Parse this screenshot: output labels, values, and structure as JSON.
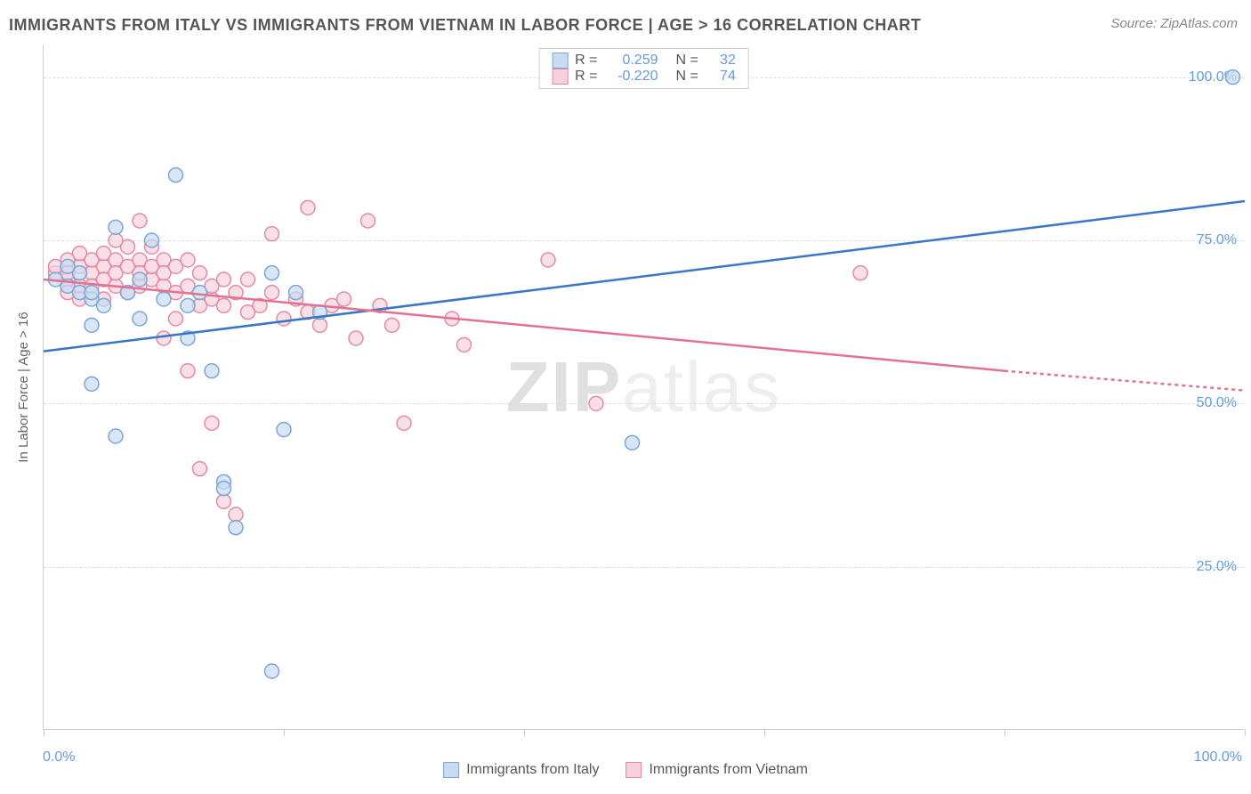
{
  "title": "IMMIGRANTS FROM ITALY VS IMMIGRANTS FROM VIETNAM IN LABOR FORCE | AGE > 16 CORRELATION CHART",
  "source": "Source: ZipAtlas.com",
  "y_axis_label": "In Labor Force | Age > 16",
  "watermark_a": "ZIP",
  "watermark_b": "atlas",
  "chart": {
    "type": "scatter-correlation",
    "xlim": [
      0,
      100
    ],
    "ylim": [
      0,
      105
    ],
    "x_ticks": [
      0,
      20,
      40,
      60,
      80,
      100
    ],
    "x_tick_labels": {
      "0": "0.0%",
      "100": "100.0%"
    },
    "y_ticks": [
      25,
      50,
      75,
      100
    ],
    "y_tick_labels": {
      "25": "25.0%",
      "50": "50.0%",
      "75": "75.0%",
      "100": "100.0%"
    },
    "background_color": "#ffffff",
    "grid_color": "#dddddd",
    "axis_color": "#cccccc",
    "tick_label_color": "#6699dd",
    "marker_radius": 8,
    "marker_stroke_width": 1.5,
    "line_width": 2.5,
    "series": [
      {
        "id": "italy",
        "label": "Immigrants from Italy",
        "fill": "#c7dbf2",
        "stroke": "#7aa6d8",
        "line_color": "#3a76c8",
        "R_label": "R =",
        "R": "0.259",
        "N_label": "N =",
        "N": "32",
        "trend": {
          "x1": 0,
          "y1": 58,
          "x2": 100,
          "y2": 81
        },
        "points": [
          [
            2,
            68
          ],
          [
            3,
            67
          ],
          [
            3,
            70
          ],
          [
            4,
            66
          ],
          [
            5,
            65
          ],
          [
            4,
            62
          ],
          [
            6,
            77
          ],
          [
            7,
            67
          ],
          [
            8,
            69
          ],
          [
            8,
            63
          ],
          [
            9,
            75
          ],
          [
            10,
            66
          ],
          [
            11,
            85
          ],
          [
            12,
            65
          ],
          [
            13,
            67
          ],
          [
            14,
            55
          ],
          [
            15,
            38
          ],
          [
            15,
            37
          ],
          [
            16,
            31
          ],
          [
            19,
            70
          ],
          [
            20,
            46
          ],
          [
            21,
            67
          ],
          [
            23,
            64
          ],
          [
            19,
            9
          ],
          [
            6,
            45
          ],
          [
            4,
            53
          ],
          [
            2,
            71
          ],
          [
            1,
            69
          ],
          [
            49,
            44
          ],
          [
            12,
            60
          ],
          [
            99,
            100
          ],
          [
            4,
            67
          ]
        ]
      },
      {
        "id": "vietnam",
        "label": "Immigrants from Vietnam",
        "fill": "#f6d1dc",
        "stroke": "#e48aa6",
        "line_color": "#e4718f",
        "R_label": "R =",
        "R": "-0.220",
        "N_label": "N =",
        "N": "74",
        "trend": {
          "x1": 0,
          "y1": 69,
          "x2": 80,
          "y2": 55
        },
        "trend_extrapolate": {
          "x1": 80,
          "y1": 55,
          "x2": 100,
          "y2": 52
        },
        "points": [
          [
            1,
            70
          ],
          [
            1,
            71
          ],
          [
            2,
            69
          ],
          [
            2,
            72
          ],
          [
            2,
            70
          ],
          [
            3,
            71
          ],
          [
            3,
            68
          ],
          [
            3,
            73
          ],
          [
            4,
            70
          ],
          [
            4,
            72
          ],
          [
            4,
            68
          ],
          [
            5,
            71
          ],
          [
            5,
            73
          ],
          [
            5,
            69
          ],
          [
            6,
            72
          ],
          [
            6,
            68
          ],
          [
            6,
            70
          ],
          [
            7,
            74
          ],
          [
            7,
            71
          ],
          [
            7,
            67
          ],
          [
            8,
            72
          ],
          [
            8,
            68
          ],
          [
            8,
            70
          ],
          [
            9,
            74
          ],
          [
            9,
            69
          ],
          [
            9,
            71
          ],
          [
            10,
            72
          ],
          [
            10,
            68
          ],
          [
            10,
            70
          ],
          [
            11,
            67
          ],
          [
            11,
            71
          ],
          [
            12,
            68
          ],
          [
            12,
            72
          ],
          [
            13,
            65
          ],
          [
            13,
            70
          ],
          [
            14,
            66
          ],
          [
            14,
            68
          ],
          [
            15,
            69
          ],
          [
            15,
            65
          ],
          [
            16,
            67
          ],
          [
            17,
            64
          ],
          [
            17,
            69
          ],
          [
            18,
            65
          ],
          [
            19,
            67
          ],
          [
            20,
            63
          ],
          [
            21,
            66
          ],
          [
            22,
            80
          ],
          [
            22,
            64
          ],
          [
            23,
            62
          ],
          [
            24,
            65
          ],
          [
            25,
            66
          ],
          [
            26,
            60
          ],
          [
            27,
            78
          ],
          [
            28,
            65
          ],
          [
            29,
            62
          ],
          [
            30,
            47
          ],
          [
            13,
            40
          ],
          [
            14,
            47
          ],
          [
            15,
            35
          ],
          [
            16,
            33
          ],
          [
            10,
            60
          ],
          [
            11,
            63
          ],
          [
            42,
            72
          ],
          [
            46,
            50
          ],
          [
            34,
            63
          ],
          [
            35,
            59
          ],
          [
            6,
            75
          ],
          [
            8,
            78
          ],
          [
            68,
            70
          ],
          [
            12,
            55
          ],
          [
            5,
            66
          ],
          [
            3,
            66
          ],
          [
            19,
            76
          ],
          [
            2,
            67
          ]
        ]
      }
    ]
  },
  "legend_bottom": {
    "items": [
      "Immigrants from Italy",
      "Immigrants from Vietnam"
    ]
  }
}
